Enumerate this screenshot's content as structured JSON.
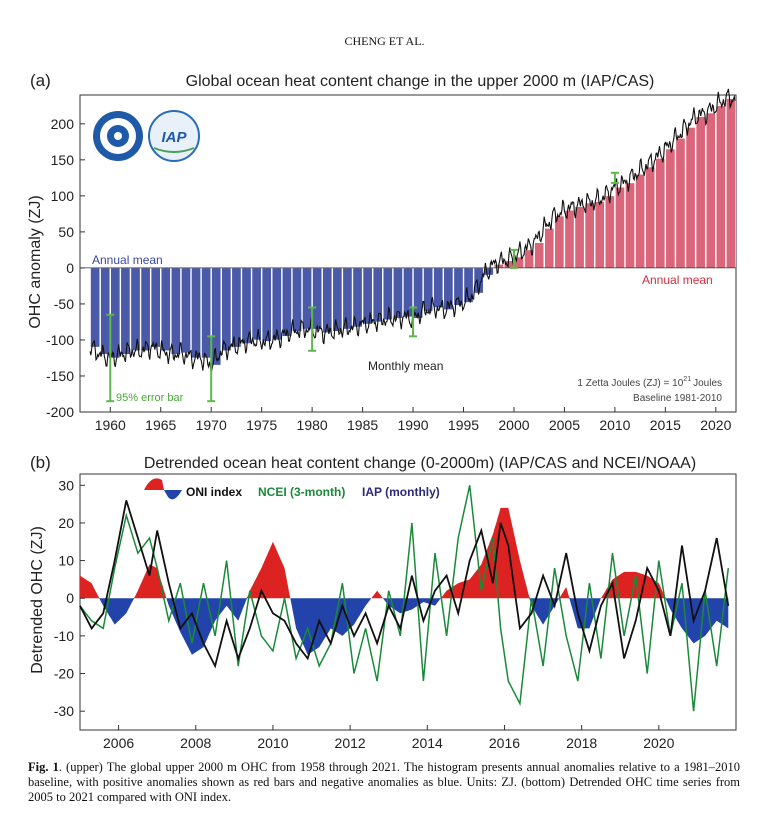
{
  "header": "CHENG ET AL.",
  "caption": {
    "label": "Fig. 1",
    "text": ". (upper) The global upper 2000 m OHC from 1958 through 2021. The histogram presents annual anomalies relative to a 1981–2010 baseline, with positive anomalies shown as red bars and negative anomalies as blue. Units: ZJ. (bottom) Detrended OHC time series from 2005 to 2021 compared with ONI index."
  },
  "chart_data": [
    {
      "type": "bar",
      "panel": "(a)",
      "title": "Global ocean heat content change in the upper 2000 m (IAP/CAS)",
      "ylabel": "OHC anomaly (ZJ)",
      "xlabel": "",
      "xlim": [
        1957,
        2022
      ],
      "ylim": [
        -200,
        240
      ],
      "xticks": [
        1960,
        1965,
        1970,
        1975,
        1980,
        1985,
        1990,
        1995,
        2000,
        2005,
        2010,
        2015,
        2020
      ],
      "yticks": [
        -200,
        -150,
        -100,
        -50,
        0,
        50,
        100,
        150,
        200
      ],
      "colors": {
        "positive": "#d9667a",
        "negative": "#4a5aa8",
        "error": "#5cb84a",
        "monthly": "#111111"
      },
      "annual_mean": {
        "years": [
          1958,
          1959,
          1960,
          1961,
          1962,
          1963,
          1964,
          1965,
          1966,
          1967,
          1968,
          1969,
          1970,
          1971,
          1972,
          1973,
          1974,
          1975,
          1976,
          1977,
          1978,
          1979,
          1980,
          1981,
          1982,
          1983,
          1984,
          1985,
          1986,
          1987,
          1988,
          1989,
          1990,
          1991,
          1992,
          1993,
          1994,
          1995,
          1996,
          1997,
          1998,
          1999,
          2000,
          2001,
          2002,
          2003,
          2004,
          2005,
          2006,
          2007,
          2008,
          2009,
          2010,
          2011,
          2012,
          2013,
          2014,
          2015,
          2016,
          2017,
          2018,
          2019,
          2020,
          2021
        ],
        "values": [
          -110,
          -120,
          -125,
          -120,
          -115,
          -115,
          -110,
          -115,
          -120,
          -118,
          -125,
          -125,
          -135,
          -115,
          -110,
          -105,
          -100,
          -102,
          -100,
          -95,
          -88,
          -85,
          -85,
          -90,
          -88,
          -85,
          -82,
          -78,
          -75,
          -72,
          -70,
          -68,
          -70,
          -60,
          -55,
          -58,
          -52,
          -48,
          -35,
          -10,
          5,
          10,
          15,
          25,
          35,
          55,
          72,
          80,
          85,
          90,
          92,
          100,
          112,
          118,
          130,
          140,
          152,
          165,
          180,
          195,
          210,
          215,
          225,
          235
        ]
      },
      "error_bars": [
        {
          "year": 1960,
          "low": -185,
          "high": -65
        },
        {
          "year": 1970,
          "low": -185,
          "high": -95
        },
        {
          "year": 1980,
          "low": -115,
          "high": -55
        },
        {
          "year": 1990,
          "low": -95,
          "high": -55
        },
        {
          "year": 2000,
          "low": 0,
          "high": 25
        },
        {
          "year": 2010,
          "low": 118,
          "high": 132
        }
      ],
      "labels": {
        "annual_left": "Annual mean",
        "annual_right": "Annual mean",
        "monthly": "Monthly mean",
        "error": "95% error bar",
        "units_line1": "1 Zetta Joules (ZJ) = 10",
        "units_sup": "21",
        "units_suffix": "Joules",
        "units_line2": "Baseline 1981-2010"
      }
    },
    {
      "type": "line",
      "panel": "(b)",
      "title": "Detrended ocean heat content change (0-2000m) (IAP/CAS and NCEI/NOAA)",
      "ylabel": "Detrended OHC (ZJ)",
      "xlabel": "",
      "xlim": [
        2005,
        2022
      ],
      "ylim": [
        -35,
        33
      ],
      "xticks": [
        2006,
        2008,
        2010,
        2012,
        2014,
        2016,
        2018,
        2020
      ],
      "yticks": [
        -30,
        -20,
        -10,
        0,
        10,
        20,
        30
      ],
      "legend": {
        "oni": "ONI index",
        "ncei": "NCEI (3-month)",
        "iap": "IAP (monthly)"
      },
      "oni_colors": {
        "positive": "#dd2222",
        "negative": "#2244aa"
      },
      "oni": {
        "x": [
          2005.0,
          2005.3,
          2005.6,
          2005.9,
          2006.2,
          2006.5,
          2006.8,
          2007.0,
          2007.3,
          2007.6,
          2007.9,
          2008.2,
          2008.5,
          2008.8,
          2009.1,
          2009.4,
          2009.7,
          2010.0,
          2010.3,
          2010.6,
          2010.9,
          2011.2,
          2011.5,
          2011.8,
          2012.1,
          2012.4,
          2012.7,
          2013.0,
          2013.3,
          2013.6,
          2013.9,
          2014.2,
          2014.5,
          2014.8,
          2015.1,
          2015.4,
          2015.7,
          2015.9,
          2016.1,
          2016.4,
          2016.7,
          2017.0,
          2017.3,
          2017.6,
          2017.9,
          2018.2,
          2018.5,
          2018.8,
          2019.1,
          2019.4,
          2019.7,
          2020.0,
          2020.3,
          2020.6,
          2020.9,
          2021.2,
          2021.5,
          2021.8
        ],
        "y": [
          6,
          4,
          -2,
          -7,
          -4,
          2,
          9,
          8,
          -2,
          -9,
          -15,
          -13,
          -6,
          -2,
          -6,
          2,
          8,
          15,
          8,
          -8,
          -15,
          -13,
          -8,
          -10,
          -7,
          -2,
          2,
          -2,
          -4,
          -3,
          -1,
          -2,
          2,
          4,
          5,
          9,
          17,
          24,
          24,
          10,
          -2,
          -7,
          -2,
          3,
          -8,
          -8,
          0,
          5,
          7,
          7,
          6,
          4,
          -3,
          -8,
          -12,
          -10,
          -6,
          -8
        ]
      },
      "ncei": {
        "x": [
          2005.0,
          2005.3,
          2005.6,
          2005.9,
          2006.2,
          2006.5,
          2006.8,
          2007.0,
          2007.3,
          2007.6,
          2007.9,
          2008.2,
          2008.5,
          2008.8,
          2009.1,
          2009.4,
          2009.7,
          2010.0,
          2010.3,
          2010.6,
          2010.9,
          2011.2,
          2011.5,
          2011.8,
          2012.1,
          2012.4,
          2012.7,
          2013.0,
          2013.3,
          2013.6,
          2013.9,
          2014.2,
          2014.5,
          2014.8,
          2015.1,
          2015.4,
          2015.7,
          2015.9,
          2016.1,
          2016.4,
          2016.7,
          2017.0,
          2017.3,
          2017.6,
          2017.9,
          2018.2,
          2018.5,
          2018.8,
          2019.1,
          2019.4,
          2019.7,
          2020.0,
          2020.3,
          2020.6,
          2020.9,
          2021.2,
          2021.5,
          2021.8
        ],
        "y": [
          -2,
          -6,
          -8,
          8,
          22,
          12,
          16,
          8,
          -6,
          4,
          -12,
          4,
          -10,
          10,
          -18,
          2,
          -10,
          -14,
          0,
          -16,
          -8,
          -18,
          -12,
          4,
          -20,
          -8,
          -22,
          2,
          -10,
          20,
          -22,
          12,
          -10,
          16,
          30,
          2,
          16,
          -8,
          -22,
          -28,
          0,
          -18,
          8,
          -10,
          -22,
          4,
          -16,
          12,
          -10,
          6,
          -20,
          10,
          -10,
          4,
          -30,
          2,
          -18,
          8
        ]
      },
      "iap": {
        "x": [
          2005.0,
          2005.3,
          2005.6,
          2005.9,
          2006.2,
          2006.5,
          2006.8,
          2007.0,
          2007.3,
          2007.6,
          2007.9,
          2008.2,
          2008.5,
          2008.8,
          2009.1,
          2009.4,
          2009.7,
          2010.0,
          2010.3,
          2010.6,
          2010.9,
          2011.2,
          2011.5,
          2011.8,
          2012.1,
          2012.4,
          2012.7,
          2013.0,
          2013.3,
          2013.6,
          2013.9,
          2014.2,
          2014.5,
          2014.8,
          2015.1,
          2015.4,
          2015.7,
          2015.9,
          2016.1,
          2016.4,
          2016.7,
          2017.0,
          2017.3,
          2017.6,
          2017.9,
          2018.2,
          2018.5,
          2018.8,
          2019.1,
          2019.4,
          2019.7,
          2020.0,
          2020.3,
          2020.6,
          2020.9,
          2021.2,
          2021.5,
          2021.8
        ],
        "y": [
          -2,
          -8,
          -4,
          10,
          26,
          16,
          6,
          18,
          4,
          -8,
          -4,
          -12,
          -18,
          -6,
          -16,
          -8,
          2,
          -4,
          -6,
          -12,
          -16,
          -6,
          -12,
          -2,
          -10,
          -4,
          -12,
          -2,
          -8,
          6,
          -6,
          2,
          6,
          -4,
          10,
          18,
          4,
          20,
          14,
          -8,
          -4,
          6,
          -2,
          12,
          -4,
          -14,
          -2,
          4,
          -16,
          -6,
          8,
          2,
          -10,
          14,
          -6,
          2,
          16,
          -2
        ]
      },
      "labels": {}
    }
  ]
}
